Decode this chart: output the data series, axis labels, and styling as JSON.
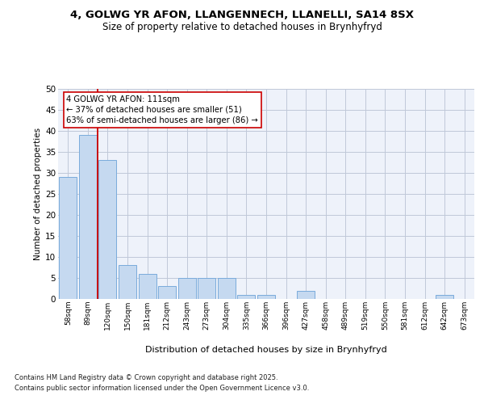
{
  "title1": "4, GOLWG YR AFON, LLANGENNECH, LLANELLI, SA14 8SX",
  "title2": "Size of property relative to detached houses in Brynhyfryd",
  "xlabel": "Distribution of detached houses by size in Brynhyfryd",
  "ylabel": "Number of detached properties",
  "categories": [
    "58sqm",
    "89sqm",
    "120sqm",
    "150sqm",
    "181sqm",
    "212sqm",
    "243sqm",
    "273sqm",
    "304sqm",
    "335sqm",
    "366sqm",
    "396sqm",
    "427sqm",
    "458sqm",
    "489sqm",
    "519sqm",
    "550sqm",
    "581sqm",
    "612sqm",
    "642sqm",
    "673sqm"
  ],
  "values": [
    29,
    39,
    33,
    8,
    6,
    3,
    5,
    5,
    5,
    1,
    1,
    0,
    2,
    0,
    0,
    0,
    0,
    0,
    0,
    1,
    0
  ],
  "bar_color": "#c5d9f0",
  "bar_edge_color": "#7aabdb",
  "grid_color": "#c0c8d8",
  "bg_color": "#eef2fa",
  "annotation_title": "4 GOLWG YR AFON: 111sqm",
  "annotation_line1": "← 37% of detached houses are smaller (51)",
  "annotation_line2": "63% of semi-detached houses are larger (86) →",
  "annotation_box_color": "#ffffff",
  "annotation_border_color": "#cc0000",
  "red_line_color": "#cc0000",
  "ylim": [
    0,
    50
  ],
  "yticks": [
    0,
    5,
    10,
    15,
    20,
    25,
    30,
    35,
    40,
    45,
    50
  ],
  "footnote1": "Contains HM Land Registry data © Crown copyright and database right 2025.",
  "footnote2": "Contains public sector information licensed under the Open Government Licence v3.0."
}
